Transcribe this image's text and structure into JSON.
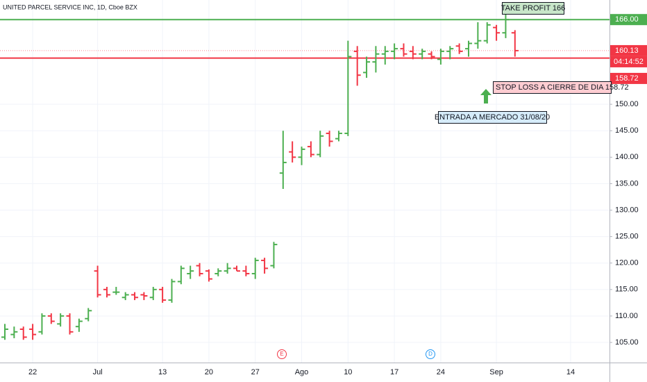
{
  "header": "UNITED PARCEL SERVICE INC, 1D, Cboe BZX",
  "chart_data": {
    "type": "ohlc",
    "up_color": "#4caf50",
    "down_color": "#f23645",
    "categories": [
      null,
      null,
      null,
      "22",
      null,
      null,
      null,
      null,
      null,
      null,
      "Jul",
      null,
      null,
      null,
      null,
      null,
      null,
      "13",
      null,
      null,
      null,
      null,
      "20",
      null,
      null,
      null,
      null,
      "27",
      null,
      null,
      null,
      null,
      "Ago",
      null,
      null,
      null,
      null,
      "10",
      null,
      null,
      null,
      null,
      "17",
      null,
      null,
      null,
      null,
      "24",
      null,
      null,
      null,
      null,
      null,
      "Sep",
      null,
      null,
      null,
      null,
      null,
      null,
      null,
      "14"
    ],
    "open": [
      106,
      106.5,
      107.5,
      107.5,
      107,
      110,
      108.5,
      110,
      108,
      109.5,
      118.5,
      115,
      114.5,
      113.5,
      114,
      114,
      113.5,
      115,
      113,
      116.5,
      118,
      119.5,
      118.5,
      118,
      118.5,
      119,
      118.5,
      118,
      120.5,
      119.5,
      137,
      141,
      140,
      142,
      140.5,
      144.5,
      143.5,
      144.5,
      160,
      156,
      158,
      159.5,
      160,
      160.5,
      160,
      159.5,
      159.5,
      158.5,
      160,
      161,
      160.5,
      161.5,
      162,
      164.5,
      163.5,
      163.5,
      null,
      null,
      null,
      null,
      null,
      null
    ],
    "high": [
      108.5,
      108,
      108,
      108.5,
      110.5,
      110.5,
      110.5,
      110.5,
      109.5,
      111.5,
      119.5,
      115.5,
      115.5,
      114.5,
      114.5,
      114.5,
      115.5,
      115.5,
      117,
      119.5,
      119.5,
      120,
      118.8,
      119,
      120,
      119.5,
      119.5,
      121,
      121,
      124,
      145,
      143,
      142,
      143,
      145,
      145,
      145,
      162,
      161,
      159,
      161,
      161,
      161.5,
      161.5,
      161,
      160.5,
      160,
      160.5,
      161,
      161.5,
      162,
      165.5,
      165.5,
      165,
      167,
      164,
      null,
      null,
      null,
      null,
      null,
      null
    ],
    "low": [
      105.5,
      105.8,
      105.5,
      105.5,
      106.5,
      108.5,
      108,
      106.5,
      107,
      109,
      113.5,
      113.5,
      114,
      113,
      113,
      113,
      113,
      112.5,
      112.5,
      116,
      117,
      117.5,
      116.5,
      117.5,
      118,
      118.5,
      117.5,
      117,
      118,
      119,
      134,
      139,
      138.5,
      140,
      140,
      142,
      143,
      144,
      153.5,
      155,
      156,
      157.5,
      158.5,
      159,
      158.5,
      158.5,
      158.5,
      157.5,
      158.5,
      159.5,
      159,
      160.5,
      161.5,
      162,
      162.5,
      159,
      null,
      null,
      null,
      null,
      null,
      null
    ],
    "close": [
      107.5,
      107,
      106,
      106.5,
      110,
      109,
      110,
      107,
      109,
      111,
      114,
      114,
      114.5,
      114,
      113.5,
      113.8,
      115,
      113,
      116.5,
      119,
      118.5,
      118,
      117,
      118.5,
      119,
      118.5,
      118,
      120.5,
      119,
      123.5,
      139,
      140,
      141.5,
      140.5,
      144,
      143,
      144.5,
      159,
      155.5,
      158,
      159.5,
      160,
      160.5,
      159.5,
      159.5,
      160,
      159,
      160,
      160.5,
      160,
      161.5,
      162,
      165,
      163.5,
      166,
      160.13,
      null,
      null,
      null,
      null,
      null,
      null
    ],
    "ylim": [
      101.2,
      169.7
    ],
    "yticks": [
      {
        "value": 105,
        "label": "105.00"
      },
      {
        "value": 110,
        "label": "110.00"
      },
      {
        "value": 115,
        "label": "115.00"
      },
      {
        "value": 120,
        "label": "120.00"
      },
      {
        "value": 125,
        "label": "125.00"
      },
      {
        "value": 130,
        "label": "130.00"
      },
      {
        "value": 135,
        "label": "135.00"
      },
      {
        "value": 140,
        "label": "140.00"
      },
      {
        "value": 145,
        "label": "145.00"
      },
      {
        "value": 150,
        "label": "150.00"
      }
    ],
    "levels": [
      {
        "value": 166,
        "label": "166.00",
        "color": "#4caf50",
        "style": "solid"
      },
      {
        "value": 160.13,
        "label": "160.13",
        "color": "#f23645",
        "style": "dotted",
        "countdown": "04:14:52"
      },
      {
        "value": 158.72,
        "label": "158.72",
        "color": "#f23645",
        "style": "solid"
      }
    ],
    "annotations": [
      "TAKE PROFIT 166",
      "STOP LOSS A CIERRE DE DIA 158.72",
      "ENTRADA A MERCADO 31/08/20"
    ],
    "event_labels": [
      "E",
      "D"
    ]
  }
}
